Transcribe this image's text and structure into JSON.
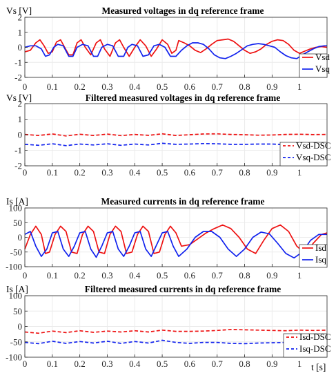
{
  "colors": {
    "red": "#ee1111",
    "blue": "#1122ee",
    "axis": "#262626",
    "grid": "#ebebeb"
  },
  "xlabel": "t [s]",
  "chart_data": [
    {
      "type": "line",
      "title": "Measured voltages in dq reference frame",
      "ylabel": "Vs [V]",
      "xlim": [
        0,
        1.1
      ],
      "ylim": [
        -2,
        2
      ],
      "xticks": [
        0,
        0.1,
        0.2,
        0.3,
        0.4,
        0.5,
        0.6,
        0.7,
        0.8,
        0.9,
        1
      ],
      "yticks": [
        -2,
        -1,
        0,
        1,
        2
      ],
      "legend_position": "bottom-right",
      "series": [
        {
          "name": "Vsd",
          "color": "#ee1111",
          "dash": false,
          "x": [
            0,
            0.02,
            0.04,
            0.055,
            0.07,
            0.085,
            0.1,
            0.115,
            0.13,
            0.145,
            0.16,
            0.175,
            0.19,
            0.205,
            0.22,
            0.24,
            0.26,
            0.275,
            0.29,
            0.31,
            0.33,
            0.345,
            0.36,
            0.38,
            0.4,
            0.42,
            0.44,
            0.46,
            0.48,
            0.5,
            0.52,
            0.535,
            0.55,
            0.56,
            0.58,
            0.6,
            0.62,
            0.64,
            0.66,
            0.68,
            0.7,
            0.72,
            0.74,
            0.76,
            0.78,
            0.8,
            0.82,
            0.84,
            0.86,
            0.88,
            0.9,
            0.92,
            0.94,
            0.96,
            0.98,
            1.0,
            1.02,
            1.04,
            1.06,
            1.08,
            1.1
          ],
          "values": [
            -0.3,
            -0.2,
            0.3,
            0.5,
            0.1,
            -0.4,
            -0.3,
            0.35,
            0.5,
            0.0,
            -0.5,
            -0.5,
            0.3,
            0.5,
            0.0,
            -0.5,
            0.3,
            0.5,
            -0.1,
            -0.6,
            0.3,
            0.5,
            0.0,
            -0.6,
            0.0,
            0.5,
            0.1,
            -0.6,
            -0.1,
            0.5,
            0.2,
            -0.4,
            -0.2,
            0.45,
            0.3,
            0.1,
            -0.2,
            -0.35,
            -0.1,
            0.2,
            0.45,
            0.5,
            0.55,
            0.4,
            0.1,
            -0.2,
            -0.4,
            -0.3,
            -0.1,
            0.2,
            0.4,
            0.5,
            0.45,
            0.2,
            -0.2,
            -0.4,
            -0.25,
            -0.1,
            0.0,
            0.05,
            0.0
          ]
        },
        {
          "name": "Vsq",
          "color": "#1122ee",
          "dash": false,
          "x": [
            0,
            0.02,
            0.04,
            0.06,
            0.075,
            0.09,
            0.105,
            0.12,
            0.14,
            0.16,
            0.175,
            0.19,
            0.21,
            0.23,
            0.25,
            0.265,
            0.28,
            0.3,
            0.32,
            0.34,
            0.36,
            0.375,
            0.39,
            0.41,
            0.43,
            0.45,
            0.47,
            0.49,
            0.51,
            0.53,
            0.55,
            0.57,
            0.59,
            0.61,
            0.63,
            0.65,
            0.67,
            0.69,
            0.71,
            0.73,
            0.75,
            0.77,
            0.79,
            0.81,
            0.83,
            0.85,
            0.87,
            0.89,
            0.91,
            0.93,
            0.95,
            0.97,
            0.99,
            1.01,
            1.03,
            1.05,
            1.07,
            1.09,
            1.1
          ],
          "values": [
            0.0,
            0.1,
            0.1,
            -0.1,
            -0.6,
            -0.5,
            0.0,
            0.2,
            0.1,
            -0.6,
            -0.6,
            0.0,
            0.2,
            0.1,
            -0.6,
            -0.6,
            0.0,
            0.2,
            0.1,
            -0.6,
            -0.6,
            0.0,
            0.2,
            0.1,
            -0.6,
            -0.5,
            0.1,
            0.2,
            0.0,
            -0.6,
            -0.6,
            -0.2,
            0.1,
            0.3,
            0.3,
            0.2,
            -0.1,
            -0.5,
            -0.7,
            -0.75,
            -0.6,
            -0.4,
            -0.15,
            0.1,
            0.2,
            0.25,
            0.2,
            0.1,
            0.0,
            -0.3,
            -0.55,
            -0.7,
            -0.75,
            -0.5,
            -0.3,
            -0.1,
            0.05,
            0.1,
            0.1
          ]
        }
      ]
    },
    {
      "type": "line",
      "title": "Filtered measured voltages in dq reference frame",
      "ylabel": "Vs [V]",
      "xlim": [
        0,
        1.1
      ],
      "ylim": [
        -2,
        2
      ],
      "xticks": [
        0,
        0.1,
        0.2,
        0.3,
        0.4,
        0.5,
        0.6,
        0.7,
        0.8,
        0.9,
        1
      ],
      "yticks": [
        -2,
        -1,
        0,
        1,
        2
      ],
      "legend_position": "bottom-right",
      "series": [
        {
          "name": "Vsd-DSC",
          "color": "#ee1111",
          "dash": true,
          "x": [
            0,
            0.05,
            0.1,
            0.15,
            0.2,
            0.25,
            0.3,
            0.35,
            0.4,
            0.45,
            0.5,
            0.55,
            0.6,
            0.65,
            0.7,
            0.75,
            0.8,
            0.85,
            0.9,
            0.95,
            1.0,
            1.05,
            1.1
          ],
          "values": [
            0.02,
            -0.05,
            0.05,
            -0.08,
            0.03,
            -0.05,
            0.04,
            -0.06,
            0.02,
            -0.04,
            0.06,
            -0.05,
            0.0,
            0.05,
            0.06,
            0.02,
            0.0,
            -0.03,
            -0.02,
            0.02,
            0.03,
            0.01,
            0.02
          ]
        },
        {
          "name": "Vsq-DSC",
          "color": "#1122ee",
          "dash": true,
          "x": [
            0,
            0.05,
            0.1,
            0.15,
            0.2,
            0.25,
            0.3,
            0.35,
            0.4,
            0.45,
            0.5,
            0.55,
            0.6,
            0.65,
            0.7,
            0.75,
            0.8,
            0.85,
            0.9,
            0.95,
            1.0,
            1.05,
            1.1
          ],
          "values": [
            -0.62,
            -0.68,
            -0.58,
            -0.7,
            -0.6,
            -0.66,
            -0.58,
            -0.68,
            -0.6,
            -0.66,
            -0.55,
            -0.62,
            -0.6,
            -0.57,
            -0.58,
            -0.62,
            -0.62,
            -0.6,
            -0.6,
            -0.64,
            -0.6,
            -0.6,
            -0.6
          ]
        }
      ]
    },
    {
      "type": "line",
      "title": "Measured currents in dq reference frame",
      "ylabel": "Is  [A]",
      "xlim": [
        0,
        1.1
      ],
      "ylim": [
        -100,
        100
      ],
      "xticks": [
        0,
        0.1,
        0.2,
        0.3,
        0.4,
        0.5,
        0.6,
        0.7,
        0.8,
        0.9,
        1
      ],
      "yticks": [
        -100,
        -50,
        0,
        50,
        100
      ],
      "legend_position": "bottom-right",
      "series": [
        {
          "name": "Isd",
          "color": "#ee1111",
          "dash": false,
          "x": [
            0,
            0.02,
            0.04,
            0.06,
            0.075,
            0.09,
            0.11,
            0.13,
            0.15,
            0.17,
            0.19,
            0.21,
            0.23,
            0.25,
            0.27,
            0.29,
            0.31,
            0.33,
            0.35,
            0.37,
            0.39,
            0.41,
            0.43,
            0.45,
            0.47,
            0.49,
            0.51,
            0.53,
            0.55,
            0.57,
            0.6,
            0.63,
            0.66,
            0.69,
            0.72,
            0.75,
            0.78,
            0.81,
            0.84,
            0.87,
            0.9,
            0.93,
            0.96,
            0.99,
            1.02,
            1.05,
            1.08,
            1.1
          ],
          "values": [
            -40,
            10,
            38,
            10,
            -55,
            -50,
            10,
            38,
            20,
            -50,
            -55,
            10,
            38,
            20,
            -50,
            -55,
            10,
            38,
            20,
            -55,
            -50,
            10,
            38,
            20,
            -55,
            -50,
            10,
            38,
            15,
            -30,
            -25,
            -5,
            15,
            30,
            42,
            30,
            0,
            -40,
            -55,
            -10,
            30,
            42,
            20,
            -30,
            -55,
            -20,
            10,
            15
          ]
        },
        {
          "name": "Isq",
          "color": "#1122ee",
          "dash": false,
          "x": [
            0,
            0.02,
            0.04,
            0.06,
            0.08,
            0.1,
            0.12,
            0.14,
            0.16,
            0.18,
            0.2,
            0.22,
            0.24,
            0.26,
            0.28,
            0.3,
            0.32,
            0.34,
            0.36,
            0.38,
            0.4,
            0.42,
            0.44,
            0.46,
            0.48,
            0.5,
            0.52,
            0.54,
            0.56,
            0.59,
            0.62,
            0.65,
            0.68,
            0.71,
            0.74,
            0.77,
            0.8,
            0.83,
            0.86,
            0.89,
            0.92,
            0.95,
            0.98,
            1.01,
            1.04,
            1.07,
            1.1
          ],
          "values": [
            10,
            20,
            -30,
            -65,
            -40,
            15,
            20,
            -40,
            -65,
            -30,
            15,
            20,
            -40,
            -68,
            -30,
            15,
            20,
            -40,
            -65,
            -30,
            15,
            20,
            -40,
            -65,
            -25,
            15,
            20,
            -30,
            -65,
            -40,
            0,
            20,
            20,
            0,
            -40,
            -65,
            -40,
            0,
            18,
            12,
            -20,
            -55,
            -70,
            -50,
            -10,
            10,
            10
          ]
        }
      ]
    },
    {
      "type": "line",
      "title": "Filtered measured currents in dq reference frame",
      "ylabel": "Is [A]",
      "xlim": [
        0,
        1.1
      ],
      "ylim": [
        -100,
        100
      ],
      "xticks": [
        0,
        0.1,
        0.2,
        0.3,
        0.4,
        0.5,
        0.6,
        0.7,
        0.8,
        0.9,
        1
      ],
      "yticks": [
        -100,
        -50,
        0,
        50,
        100
      ],
      "legend_position": "bottom-right",
      "series": [
        {
          "name": "Isd-DSC",
          "color": "#ee1111",
          "dash": true,
          "x": [
            0,
            0.05,
            0.1,
            0.15,
            0.2,
            0.25,
            0.3,
            0.35,
            0.4,
            0.45,
            0.5,
            0.55,
            0.6,
            0.65,
            0.7,
            0.75,
            0.8,
            0.85,
            0.9,
            0.95,
            1.0,
            1.05,
            1.1
          ],
          "values": [
            -18,
            -22,
            -15,
            -20,
            -14,
            -19,
            -15,
            -18,
            -14,
            -18,
            -12,
            -16,
            -16,
            -15,
            -13,
            -10,
            -11,
            -12,
            -13,
            -14,
            -12,
            -13,
            -12
          ]
        },
        {
          "name": "Isq-DSC",
          "color": "#1122ee",
          "dash": true,
          "x": [
            0,
            0.05,
            0.1,
            0.15,
            0.2,
            0.25,
            0.3,
            0.35,
            0.4,
            0.45,
            0.5,
            0.55,
            0.6,
            0.65,
            0.7,
            0.75,
            0.8,
            0.85,
            0.9,
            0.95,
            1.0,
            1.05,
            1.1
          ],
          "values": [
            -52,
            -56,
            -48,
            -55,
            -49,
            -54,
            -48,
            -55,
            -49,
            -54,
            -45,
            -52,
            -55,
            -52,
            -52,
            -55,
            -56,
            -54,
            -53,
            -52,
            -50,
            -50,
            -50
          ]
        }
      ]
    }
  ]
}
